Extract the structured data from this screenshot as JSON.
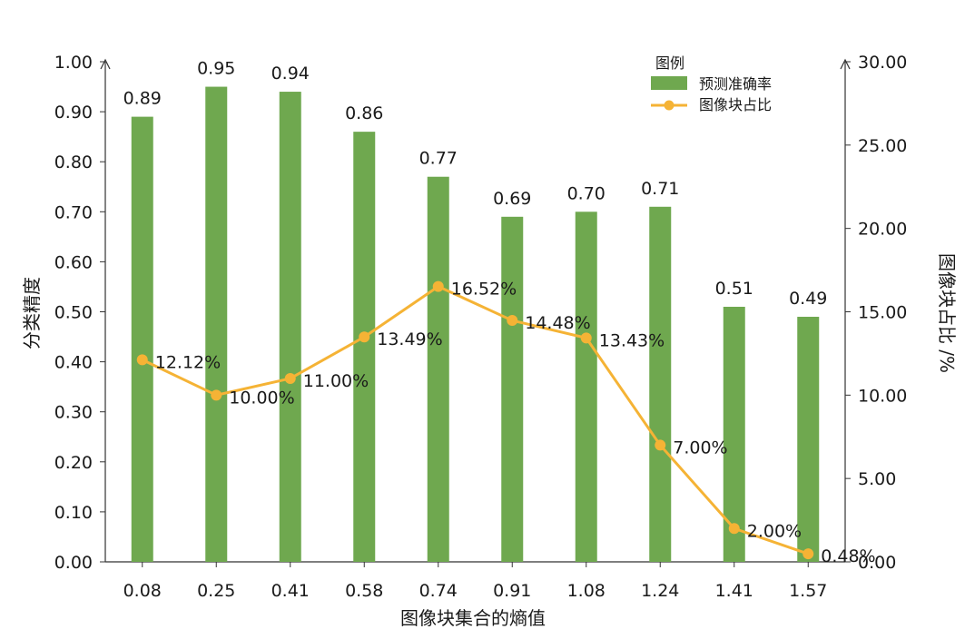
{
  "chart_data": {
    "type": "bar+line",
    "categories": [
      "0.08",
      "0.25",
      "0.41",
      "0.58",
      "0.74",
      "0.91",
      "1.08",
      "1.24",
      "1.41",
      "1.57"
    ],
    "series": [
      {
        "name": "预测准确率",
        "type": "bar",
        "axis": "left",
        "color": "#6fa84f",
        "values": [
          0.89,
          0.95,
          0.94,
          0.86,
          0.77,
          0.69,
          0.7,
          0.71,
          0.51,
          0.49
        ],
        "labels": [
          "0.89",
          "0.95",
          "0.94",
          "0.86",
          "0.77",
          "0.69",
          "0.70",
          "0.71",
          "0.51",
          "0.49"
        ]
      },
      {
        "name": "图像块占比",
        "type": "line",
        "axis": "right",
        "color": "#f5b335",
        "values": [
          12.12,
          10.0,
          11.0,
          13.49,
          16.52,
          14.48,
          13.43,
          7.0,
          2.0,
          0.48
        ],
        "labels": [
          "12.12%",
          "10.00%",
          "11.00%",
          "13.49%",
          "16.52%",
          "14.48%",
          "13.43%",
          "7.00%",
          "2.00%",
          "0.48%"
        ]
      }
    ],
    "xlabel": "图像块集合的熵值",
    "ylabel": "分类精度",
    "y2label": "图像块占比 /%",
    "ylim": [
      0,
      1.0
    ],
    "y2lim": [
      0,
      30.0
    ],
    "yticks": [
      "0.00",
      "0.10",
      "0.20",
      "0.30",
      "0.40",
      "0.50",
      "0.60",
      "0.70",
      "0.80",
      "0.90",
      "1.00"
    ],
    "y2ticks": [
      "0.00",
      "5.00",
      "10.00",
      "15.00",
      "20.00",
      "25.00",
      "30.00"
    ],
    "legend": {
      "title": "图例",
      "placement": "top-right"
    },
    "grid": false
  }
}
